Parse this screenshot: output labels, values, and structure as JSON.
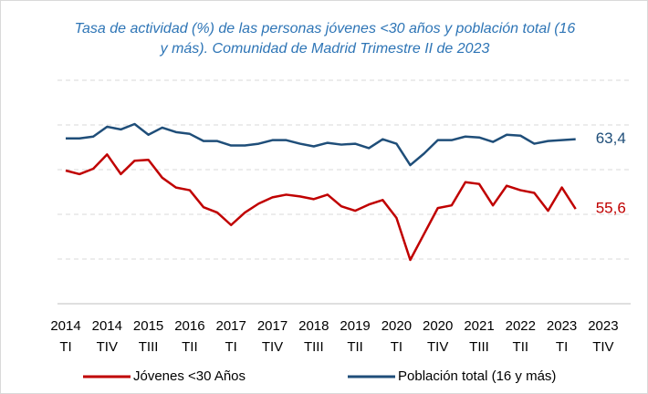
{
  "chart_data": {
    "type": "line",
    "title": "Tasa de actividad (%) de las personas jóvenes <30 años y población total (16 y más). Comunidad de Madrid Trimestre II de 2023",
    "categories": [
      [
        "2014",
        "TI"
      ],
      null,
      null,
      [
        "2014",
        "TIV"
      ],
      null,
      null,
      [
        "2015",
        "TIII"
      ],
      null,
      null,
      [
        "2016",
        "TII"
      ],
      null,
      null,
      [
        "2017",
        "TI"
      ],
      null,
      null,
      [
        "2017",
        "TIV"
      ],
      null,
      null,
      [
        "2018",
        "TIII"
      ],
      null,
      null,
      [
        "2019",
        "TII"
      ],
      null,
      null,
      [
        "2020",
        "TI"
      ],
      null,
      null,
      [
        "2020",
        "TIV"
      ],
      null,
      null,
      [
        "2021",
        "TIII"
      ],
      null,
      null,
      [
        "2022",
        "TII"
      ],
      null,
      null,
      [
        "2023",
        "TI"
      ],
      null,
      null,
      [
        "2023",
        "TIV"
      ]
    ],
    "series": [
      {
        "name": "Jóvenes <30 Años",
        "color": "#c00000",
        "values": [
          59.9,
          59.5,
          60.1,
          61.7,
          59.5,
          61.0,
          61.1,
          59.1,
          58.0,
          57.7,
          55.8,
          55.2,
          53.8,
          55.2,
          56.2,
          56.9,
          57.2,
          57.0,
          56.7,
          57.2,
          55.9,
          55.4,
          56.1,
          56.6,
          54.6,
          49.9,
          52.8,
          55.7,
          56.0,
          58.6,
          58.4,
          56.0,
          58.2,
          57.7,
          57.4,
          55.4,
          58.0,
          55.6,
          null,
          null
        ],
        "value_labels": [
          null,
          null,
          null,
          null,
          null,
          null,
          null,
          null,
          null,
          null,
          null,
          null,
          null,
          null,
          null,
          null,
          null,
          null,
          null,
          null,
          null,
          null,
          null,
          null,
          null,
          null,
          null,
          null,
          null,
          null,
          null,
          null,
          null,
          null,
          null,
          null,
          null,
          "55,6",
          null,
          null
        ]
      },
      {
        "name": "Población total (16 y más)",
        "color": "#1f4e79",
        "values": [
          63.5,
          63.5,
          63.7,
          64.8,
          64.5,
          65.1,
          63.9,
          64.7,
          64.2,
          64.0,
          63.2,
          63.2,
          62.7,
          62.7,
          62.9,
          63.3,
          63.3,
          62.9,
          62.6,
          63.0,
          62.8,
          62.9,
          62.4,
          63.4,
          62.9,
          60.5,
          61.8,
          63.3,
          63.3,
          63.7,
          63.6,
          63.1,
          63.9,
          63.8,
          62.9,
          63.2,
          63.3,
          63.4,
          null,
          null
        ],
        "value_labels": [
          null,
          null,
          null,
          null,
          null,
          null,
          null,
          null,
          null,
          null,
          null,
          null,
          null,
          null,
          null,
          null,
          null,
          null,
          null,
          null,
          null,
          null,
          null,
          null,
          null,
          null,
          null,
          null,
          null,
          null,
          null,
          null,
          null,
          null,
          null,
          null,
          null,
          "63,4",
          null,
          null
        ]
      }
    ],
    "ylim": [
      45,
      70
    ],
    "yticks": [
      45,
      50,
      55,
      60,
      65,
      70
    ],
    "grid": true,
    "legend": "bottom"
  }
}
